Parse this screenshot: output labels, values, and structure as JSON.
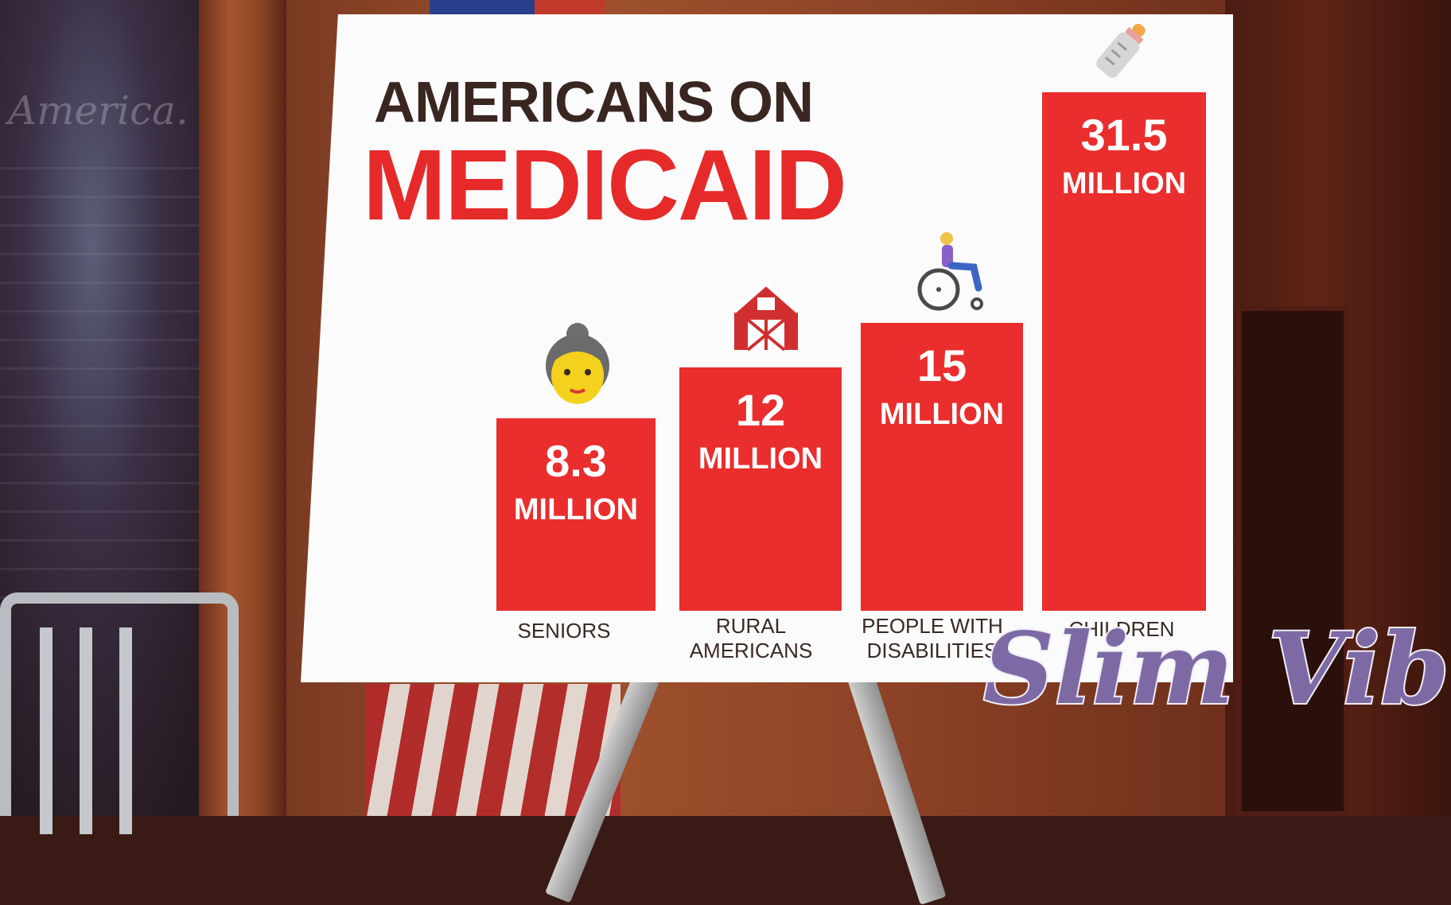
{
  "poster": {
    "title_line1": "AMERICANS ON",
    "title_line2": "MEDICAID",
    "bars": [
      {
        "value": "8.3",
        "unit": "MILLION",
        "category": [
          "SENIORS"
        ],
        "icon": "older-woman-icon",
        "amount": 8.3
      },
      {
        "value": "12",
        "unit": "MILLION",
        "category": [
          "RURAL",
          "AMERICANS"
        ],
        "icon": "barn-icon",
        "amount": 12
      },
      {
        "value": "15",
        "unit": "MILLION",
        "category": [
          "PEOPLE WITH",
          "DISABILITIES"
        ],
        "icon": "wheelchair-user-icon",
        "amount": 15
      },
      {
        "value": "31.5",
        "unit": "MILLION",
        "category": [
          "CHILDREN"
        ],
        "icon": "baby-bottle-icon",
        "amount": 31.5
      }
    ],
    "colors": {
      "bar": "#ea2d2d",
      "title_dark": "#3a2620",
      "title_red": "#e62a2a"
    }
  },
  "background": {
    "wall_text": "America."
  },
  "watermark": {
    "text": "Slim Vib",
    "color": "#7d6aa5"
  }
}
